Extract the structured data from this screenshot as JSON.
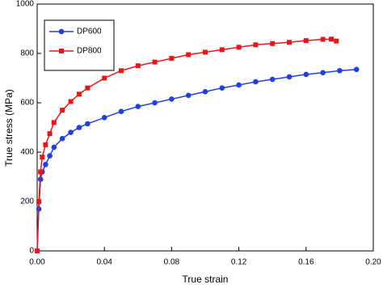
{
  "chart_data": {
    "type": "line",
    "x_label": "True strain",
    "y_label": "True stress  (MPa)",
    "xlim": [
      0,
      0.2
    ],
    "ylim": [
      0,
      1000
    ],
    "xticks": [
      {
        "value": 0,
        "label": "0.00"
      },
      0.04,
      0.08,
      0.12,
      0.16,
      {
        "value": 0.2,
        "label": "0.20"
      }
    ],
    "yticks": [
      0,
      200,
      400,
      600,
      800,
      1000
    ],
    "legend": "upper-left",
    "series": [
      {
        "name": "DP600",
        "color": "#1f3fe0",
        "marker": "circle",
        "x": [
          0,
          0.001,
          0.002,
          0.003,
          0.005,
          0.0075,
          0.01,
          0.015,
          0.02,
          0.025,
          0.03,
          0.04,
          0.05,
          0.06,
          0.07,
          0.08,
          0.09,
          0.1,
          0.11,
          0.12,
          0.13,
          0.14,
          0.15,
          0.16,
          0.17,
          0.18,
          0.19
        ],
        "values": [
          0,
          170,
          290,
          320,
          350,
          385,
          420,
          455,
          480,
          500,
          515,
          540,
          565,
          585,
          600,
          615,
          630,
          645,
          660,
          672,
          685,
          695,
          705,
          715,
          722,
          730,
          735
        ]
      },
      {
        "name": "DP800",
        "color": "#e8161b",
        "marker": "square",
        "x": [
          0,
          0.001,
          0.002,
          0.003,
          0.005,
          0.0075,
          0.01,
          0.015,
          0.02,
          0.025,
          0.03,
          0.04,
          0.05,
          0.06,
          0.07,
          0.08,
          0.09,
          0.1,
          0.11,
          0.12,
          0.13,
          0.14,
          0.15,
          0.16,
          0.17,
          0.175,
          0.178
        ],
        "values": [
          0,
          200,
          320,
          380,
          430,
          475,
          520,
          570,
          605,
          635,
          660,
          700,
          730,
          750,
          765,
          780,
          795,
          805,
          815,
          825,
          835,
          840,
          845,
          852,
          857,
          858,
          850
        ]
      }
    ]
  }
}
